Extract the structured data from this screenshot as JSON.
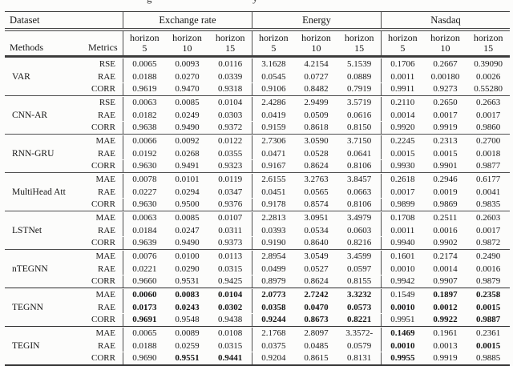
{
  "caption_fragments": [
    "g",
    "y"
  ],
  "header": {
    "dataset_label": "Dataset",
    "methods_label": "Methods",
    "metrics_label": "Metrics",
    "groups": [
      "Exchange rate",
      "Energy",
      "Nasdaq"
    ],
    "horizon_word": "horizon",
    "horizon_nums": [
      "5",
      "10",
      "15",
      "5",
      "10",
      "15",
      "5",
      "10",
      "15"
    ]
  },
  "rows": [
    {
      "method": "VAR",
      "metrics": [
        {
          "name": "RSE",
          "values": [
            {
              "t": "0.0065"
            },
            {
              "t": "0.0093"
            },
            {
              "t": "0.0116"
            },
            {
              "t": "3.1628"
            },
            {
              "t": "4.2154"
            },
            {
              "t": "5.1539"
            },
            {
              "t": "0.1706"
            },
            {
              "t": "0.2667"
            },
            {
              "t": "0.39090"
            }
          ]
        },
        {
          "name": "RAE",
          "values": [
            {
              "t": "0.0188"
            },
            {
              "t": "0.0270"
            },
            {
              "t": "0.0339"
            },
            {
              "t": "0.0545"
            },
            {
              "t": "0.0727"
            },
            {
              "t": "0.0889"
            },
            {
              "t": "0.0011"
            },
            {
              "t": "0.00180"
            },
            {
              "t": "0.0026"
            }
          ]
        },
        {
          "name": "CORR",
          "values": [
            {
              "t": "0.9619"
            },
            {
              "t": "0.9470"
            },
            {
              "t": "0.9318"
            },
            {
              "t": "0.9106"
            },
            {
              "t": "0.8482"
            },
            {
              "t": "0.7919"
            },
            {
              "t": "0.9911"
            },
            {
              "t": "0.9273"
            },
            {
              "t": "0.55280"
            }
          ]
        }
      ]
    },
    {
      "method": "CNN-AR",
      "metrics": [
        {
          "name": "RSE",
          "values": [
            {
              "t": "0.0063"
            },
            {
              "t": "0.0085"
            },
            {
              "t": "0.0104"
            },
            {
              "t": "2.4286"
            },
            {
              "t": "2.9499"
            },
            {
              "t": "3.5719"
            },
            {
              "t": "0.2110"
            },
            {
              "t": "0.2650"
            },
            {
              "t": "0.2663"
            }
          ]
        },
        {
          "name": "RAE",
          "values": [
            {
              "t": "0.0182"
            },
            {
              "t": "0.0249"
            },
            {
              "t": "0.0303"
            },
            {
              "t": "0.0419"
            },
            {
              "t": "0.0509"
            },
            {
              "t": "0.0616"
            },
            {
              "t": "0.0014"
            },
            {
              "t": "0.0017"
            },
            {
              "t": "0.0017"
            }
          ]
        },
        {
          "name": "CORR",
          "values": [
            {
              "t": "0.9638"
            },
            {
              "t": "0.9490"
            },
            {
              "t": "0.9372"
            },
            {
              "t": "0.9159"
            },
            {
              "t": "0.8618"
            },
            {
              "t": "0.8150"
            },
            {
              "t": "0.9920"
            },
            {
              "t": "0.9919"
            },
            {
              "t": "0.9860"
            }
          ]
        }
      ]
    },
    {
      "method": "RNN-GRU",
      "metrics": [
        {
          "name": "MAE",
          "values": [
            {
              "t": "0.0066"
            },
            {
              "t": "0.0092"
            },
            {
              "t": "0.0122"
            },
            {
              "t": "2.7306"
            },
            {
              "t": "3.0590"
            },
            {
              "t": "3.7150"
            },
            {
              "t": "0.2245"
            },
            {
              "t": "0.2313"
            },
            {
              "t": "0.2700"
            }
          ]
        },
        {
          "name": "RAE",
          "values": [
            {
              "t": "0.0192"
            },
            {
              "t": "0.0268"
            },
            {
              "t": "0.0355"
            },
            {
              "t": "0.0471"
            },
            {
              "t": "0.0528"
            },
            {
              "t": "0.0641"
            },
            {
              "t": "0.0015"
            },
            {
              "t": "0.0015"
            },
            {
              "t": "0.0018"
            }
          ]
        },
        {
          "name": "CORR",
          "values": [
            {
              "t": "0.9630"
            },
            {
              "t": "0.9491"
            },
            {
              "t": "0.9323"
            },
            {
              "t": "0.9167"
            },
            {
              "t": "0.8624"
            },
            {
              "t": "0.8106"
            },
            {
              "t": "0.9930"
            },
            {
              "t": "0.9901"
            },
            {
              "t": "0.9877"
            }
          ]
        }
      ]
    },
    {
      "method": "MultiHead Att",
      "metrics": [
        {
          "name": "MAE",
          "values": [
            {
              "t": "0.0078"
            },
            {
              "t": "0.0101"
            },
            {
              "t": "0.0119"
            },
            {
              "t": "2.6155"
            },
            {
              "t": "3.2763"
            },
            {
              "t": "3.8457"
            },
            {
              "t": "0.2618"
            },
            {
              "t": "0.2946"
            },
            {
              "t": "0.6177"
            }
          ]
        },
        {
          "name": "RAE",
          "values": [
            {
              "t": "0.0227"
            },
            {
              "t": "0.0294"
            },
            {
              "t": "0.0347"
            },
            {
              "t": "0.0451"
            },
            {
              "t": "0.0565"
            },
            {
              "t": "0.0663"
            },
            {
              "t": "0.0017"
            },
            {
              "t": "0.0019"
            },
            {
              "t": "0.0041"
            }
          ]
        },
        {
          "name": "CORR",
          "values": [
            {
              "t": "0.9630"
            },
            {
              "t": "0.9500"
            },
            {
              "t": "0.9376"
            },
            {
              "t": "0.9178"
            },
            {
              "t": "0.8574"
            },
            {
              "t": "0.8106"
            },
            {
              "t": "0.9899"
            },
            {
              "t": "0.9869"
            },
            {
              "t": "0.9835"
            }
          ]
        }
      ]
    },
    {
      "method": "LSTNet",
      "metrics": [
        {
          "name": "MAE",
          "values": [
            {
              "t": "0.0063"
            },
            {
              "t": "0.0085"
            },
            {
              "t": "0.0107"
            },
            {
              "t": "2.2813"
            },
            {
              "t": "3.0951"
            },
            {
              "t": "3.4979"
            },
            {
              "t": "0.1708"
            },
            {
              "t": "0.2511"
            },
            {
              "t": "0.2603"
            }
          ]
        },
        {
          "name": "RAE",
          "values": [
            {
              "t": "0.0184"
            },
            {
              "t": "0.0247"
            },
            {
              "t": "0.0311"
            },
            {
              "t": "0.0393"
            },
            {
              "t": "0.0534"
            },
            {
              "t": "0.0603"
            },
            {
              "t": "0.0011"
            },
            {
              "t": "0.0016"
            },
            {
              "t": "0.0017"
            }
          ]
        },
        {
          "name": "CORR",
          "values": [
            {
              "t": "0.9639"
            },
            {
              "t": "0.9490"
            },
            {
              "t": "0.9373"
            },
            {
              "t": "0.9190"
            },
            {
              "t": "0.8640"
            },
            {
              "t": "0.8216"
            },
            {
              "t": "0.9940"
            },
            {
              "t": "0.9902"
            },
            {
              "t": "0.9872"
            }
          ]
        }
      ]
    },
    {
      "method": "nTEGNN",
      "metrics": [
        {
          "name": "MAE",
          "values": [
            {
              "t": "0.0076"
            },
            {
              "t": "0.0100"
            },
            {
              "t": "0.0113"
            },
            {
              "t": "2.8954"
            },
            {
              "t": "3.0549"
            },
            {
              "t": "3.4599"
            },
            {
              "t": "0.1601"
            },
            {
              "t": "0.2174"
            },
            {
              "t": "0.2490"
            }
          ]
        },
        {
          "name": "RAE",
          "values": [
            {
              "t": "0.0221"
            },
            {
              "t": "0.0290"
            },
            {
              "t": "0.0315"
            },
            {
              "t": "0.0499"
            },
            {
              "t": "0.0527"
            },
            {
              "t": "0.0597"
            },
            {
              "t": "0.0010"
            },
            {
              "t": "0.0014"
            },
            {
              "t": "0.0016"
            }
          ]
        },
        {
          "name": "CORR",
          "values": [
            {
              "t": "0.9660"
            },
            {
              "t": "0.9531"
            },
            {
              "t": "0.9425"
            },
            {
              "t": "0.8979"
            },
            {
              "t": "0.8624"
            },
            {
              "t": "0.8155"
            },
            {
              "t": "0.9942"
            },
            {
              "t": "0.9907"
            },
            {
              "t": "0.9879"
            }
          ]
        }
      ]
    },
    {
      "method": "TEGNN",
      "metrics": [
        {
          "name": "MAE",
          "values": [
            {
              "t": "0.0060",
              "b": 1
            },
            {
              "t": "0.0083",
              "b": 1
            },
            {
              "t": "0.0104",
              "b": 1
            },
            {
              "t": "2.0773",
              "b": 1
            },
            {
              "t": "2.7242",
              "b": 1
            },
            {
              "t": "3.3232",
              "b": 1
            },
            {
              "t": "0.1549"
            },
            {
              "t": "0.1897",
              "b": 1
            },
            {
              "t": "0.2358",
              "b": 1
            }
          ]
        },
        {
          "name": "RAE",
          "values": [
            {
              "t": "0.0173",
              "b": 1
            },
            {
              "t": "0.0243",
              "b": 1
            },
            {
              "t": "0.0302",
              "b": 1
            },
            {
              "t": "0.0358",
              "b": 1
            },
            {
              "t": "0.0470",
              "b": 1
            },
            {
              "t": "0.0573",
              "b": 1
            },
            {
              "t": "0.0010",
              "b": 1
            },
            {
              "t": "0.0012",
              "b": 1
            },
            {
              "t": "0.0015",
              "b": 1
            }
          ]
        },
        {
          "name": "CORR",
          "values": [
            {
              "t": "0.9691",
              "b": 1
            },
            {
              "t": "0.9548"
            },
            {
              "t": "0.9438"
            },
            {
              "t": "0.9244",
              "b": 1
            },
            {
              "t": "0.8673",
              "b": 1
            },
            {
              "t": "0.8221",
              "b": 1
            },
            {
              "t": "0.9951"
            },
            {
              "t": "0.9922",
              "b": 1
            },
            {
              "t": "0.9887",
              "b": 1
            }
          ]
        }
      ]
    },
    {
      "method": "TEGIN",
      "metrics": [
        {
          "name": "MAE",
          "values": [
            {
              "t": "0.0065"
            },
            {
              "t": "0.0089"
            },
            {
              "t": "0.0108"
            },
            {
              "t": "2.1768"
            },
            {
              "t": "2.8097"
            },
            {
              "t": "3.3572-"
            },
            {
              "t": "0.1469",
              "b": 1
            },
            {
              "t": "0.1961"
            },
            {
              "t": "0.2361"
            }
          ]
        },
        {
          "name": "RAE",
          "values": [
            {
              "t": "0.0188"
            },
            {
              "t": "0.0259"
            },
            {
              "t": "0.0315"
            },
            {
              "t": "0.0375"
            },
            {
              "t": "0.0485"
            },
            {
              "t": "0.0579"
            },
            {
              "t": "0.0010",
              "b": 1
            },
            {
              "t": "0.0013"
            },
            {
              "t": "0.0015",
              "b": 1
            }
          ]
        },
        {
          "name": "CORR",
          "values": [
            {
              "t": "0.9690"
            },
            {
              "t": "0.9551",
              "b": 1
            },
            {
              "t": "0.9441",
              "b": 1
            },
            {
              "t": "0.9204"
            },
            {
              "t": "0.8615"
            },
            {
              "t": "0.8131"
            },
            {
              "t": "0.9955",
              "b": 1
            },
            {
              "t": "0.9919"
            },
            {
              "t": "0.9885"
            }
          ]
        }
      ]
    }
  ]
}
